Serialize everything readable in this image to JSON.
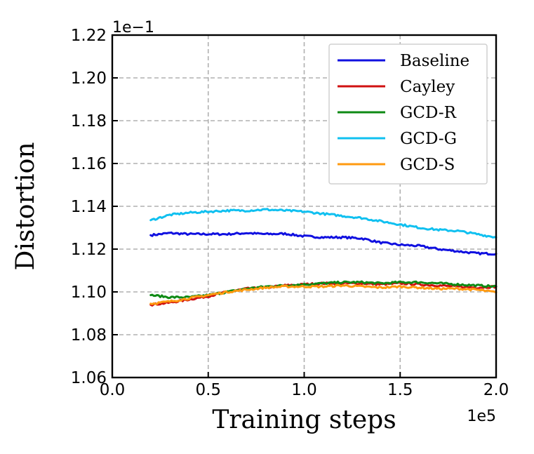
{
  "chart_data": {
    "type": "line",
    "title": "",
    "xlabel": "Training steps",
    "ylabel": "Distortion",
    "x_offset_label": "1e5",
    "y_offset_label": "1e−1",
    "xlim": [
      0.0,
      2.0
    ],
    "ylim": [
      1.06,
      1.22
    ],
    "x_ticks": [
      0.0,
      0.5,
      1.0,
      1.5,
      2.0
    ],
    "x_tick_labels": [
      "0.0",
      "0.5",
      "1.0",
      "1.5",
      "2.0"
    ],
    "y_ticks": [
      1.06,
      1.08,
      1.1,
      1.12,
      1.14,
      1.16,
      1.18,
      1.2,
      1.22
    ],
    "y_tick_labels": [
      "1.06",
      "1.08",
      "1.10",
      "1.12",
      "1.14",
      "1.16",
      "1.18",
      "1.20",
      "1.22"
    ],
    "grid": true,
    "legend_position": "top-right",
    "x": [
      0.2,
      0.3,
      0.4,
      0.5,
      0.6,
      0.7,
      0.8,
      0.9,
      1.0,
      1.1,
      1.2,
      1.3,
      1.4,
      1.5,
      1.6,
      1.7,
      1.8,
      1.9,
      2.0
    ],
    "series": [
      {
        "name": "Baseline",
        "color": "#1010e0",
        "values": [
          1.1265,
          1.1275,
          1.127,
          1.127,
          1.127,
          1.1275,
          1.127,
          1.1272,
          1.126,
          1.1255,
          1.1255,
          1.125,
          1.123,
          1.122,
          1.1215,
          1.12,
          1.119,
          1.118,
          1.1178
        ]
      },
      {
        "name": "Cayley",
        "color": "#d01010",
        "values": [
          1.094,
          1.095,
          1.0965,
          1.098,
          1.1,
          1.1015,
          1.102,
          1.103,
          1.1035,
          1.104,
          1.104,
          1.104,
          1.1035,
          1.104,
          1.1035,
          1.103,
          1.1025,
          1.102,
          1.1025
        ]
      },
      {
        "name": "GCD-R",
        "color": "#0e8a14",
        "values": [
          1.0985,
          1.0975,
          1.0975,
          1.0985,
          1.1,
          1.1015,
          1.1025,
          1.103,
          1.1035,
          1.104,
          1.1045,
          1.1045,
          1.104,
          1.1045,
          1.1045,
          1.104,
          1.1035,
          1.103,
          1.1025
        ]
      },
      {
        "name": "GCD-G",
        "color": "#10c0f0",
        "values": [
          1.1335,
          1.136,
          1.137,
          1.1375,
          1.138,
          1.138,
          1.1385,
          1.138,
          1.1375,
          1.1365,
          1.1355,
          1.1345,
          1.133,
          1.1315,
          1.13,
          1.129,
          1.1285,
          1.127,
          1.1255
        ]
      },
      {
        "name": "GCD-S",
        "color": "#ff9a10",
        "values": [
          1.0945,
          1.0955,
          1.097,
          1.0985,
          1.1,
          1.101,
          1.102,
          1.1025,
          1.1025,
          1.1025,
          1.103,
          1.1025,
          1.102,
          1.1025,
          1.102,
          1.1015,
          1.1015,
          1.101,
          1.0998
        ]
      }
    ]
  }
}
